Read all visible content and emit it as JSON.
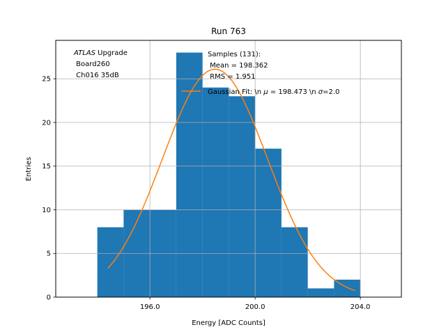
{
  "chart_data": {
    "type": "bar",
    "title": "Run 763",
    "xlabel": "Energy [ADC Counts]",
    "ylabel": "Entries",
    "xlim": [
      192.42,
      205.56
    ],
    "ylim": [
      0,
      29.4
    ],
    "grid": true,
    "xticks": [
      196.0,
      200.0,
      204.0
    ],
    "xtick_labels": [
      "196.0",
      "200.0",
      "204.0"
    ],
    "yticks": [
      0,
      5,
      10,
      15,
      20,
      25
    ],
    "ytick_labels": [
      "0",
      "5",
      "10",
      "15",
      "20",
      "25"
    ],
    "bin_edges": [
      194,
      195,
      196,
      197,
      198,
      199,
      200,
      201,
      202,
      203,
      204
    ],
    "values": [
      8,
      10,
      10,
      28,
      24,
      23,
      17,
      8,
      1,
      2
    ],
    "bar_color": "#1f77b4",
    "fit": {
      "name": "Gaussian Fit",
      "mu": 198.473,
      "sigma": 2.0,
      "amplitude": 26.1,
      "x_range": [
        194.4,
        203.8
      ],
      "color": "#ff7f0e"
    },
    "annotations": {
      "experiment_italic": "ATLAS",
      "experiment_rest": " Upgrade",
      "board": " Board260",
      "channel": " Ch016 35dB"
    },
    "stats": {
      "line1": "Samples (131):",
      "line2": " Mean = 198.362",
      "line3": " RMS = 1.951"
    },
    "legend": {
      "placement": "top-right",
      "entry_prefix": "Gaussian Fit: \\n ",
      "mu_symbol": "μ",
      "mu_text": " = 198.473 \\n ",
      "sigma_symbol": "σ",
      "sigma_text": "=2.0"
    }
  }
}
